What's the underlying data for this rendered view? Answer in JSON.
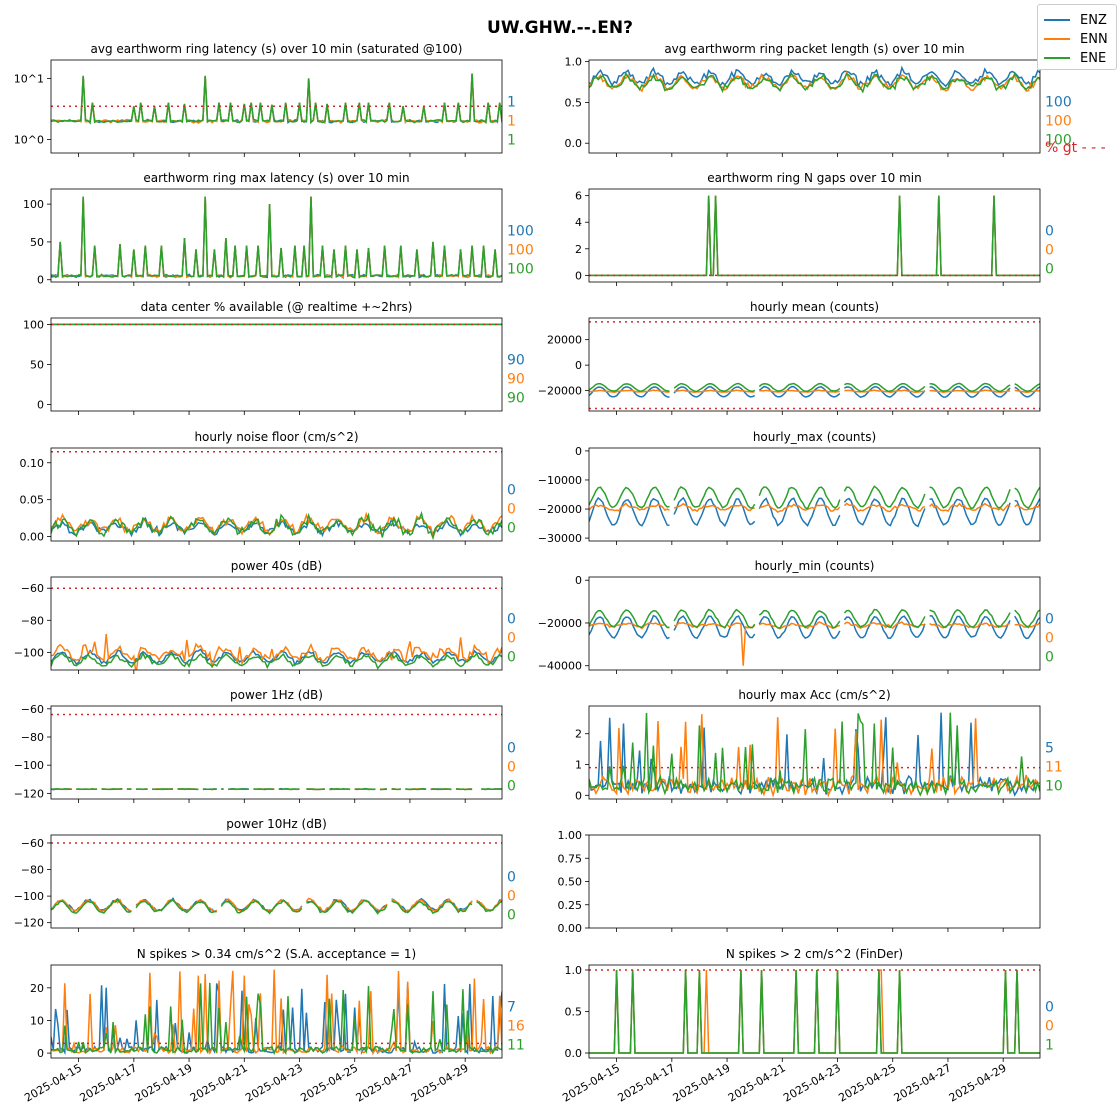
{
  "suptitle": "UW.GHW.--.EN?",
  "legend": [
    {
      "name": "ENZ",
      "color": "#1f77b4"
    },
    {
      "name": "ENN",
      "color": "#ff7f0e"
    },
    {
      "name": "ENE",
      "color": "#2ca02c"
    }
  ],
  "x_ticks": [
    "2025-04-15",
    "2025-04-17",
    "2025-04-19",
    "2025-04-21",
    "2025-04-23",
    "2025-04-25",
    "2025-04-27",
    "2025-04-29"
  ],
  "x_range": [
    "2025-04-14",
    "2025-04-30"
  ],
  "pct_gt_label": "% gt - - -",
  "threshold_color": "#d62728",
  "chart_data": [
    {
      "id": "latency_avg",
      "type": "line",
      "title": "avg earthworm ring latency (s)   over 10 min (saturated @100)",
      "yscale": "log",
      "ylim": [
        0.6,
        20
      ],
      "yticks": [
        {
          "v": 1,
          "label": "10^0"
        },
        {
          "v": 10,
          "label": "10^1"
        }
      ],
      "threshold": 3.5,
      "baseline": [
        2.0,
        2.0,
        2.0
      ],
      "noise": 0.12,
      "spikes": [
        {
          "x": 2025.0415,
          "h": 12
        },
        {
          "x": 0,
          "h": 0
        }
      ],
      "spike_list": [
        [
          "2025-04-15T03",
          11
        ],
        [
          "2025-04-15T12",
          4
        ],
        [
          "2025-04-17T00",
          3.5
        ],
        [
          "2025-04-17T06",
          4
        ],
        [
          "2025-04-17T18",
          3.5
        ],
        [
          "2025-04-18T06",
          4
        ],
        [
          "2025-04-18T20",
          3.8
        ],
        [
          "2025-04-19T14",
          11
        ],
        [
          "2025-04-20T02",
          4
        ],
        [
          "2025-04-20T12",
          4
        ],
        [
          "2025-04-21T00",
          3.8
        ],
        [
          "2025-04-21T06",
          4
        ],
        [
          "2025-04-21T14",
          4
        ],
        [
          "2025-04-22T00",
          3.7
        ],
        [
          "2025-04-22T12",
          4
        ],
        [
          "2025-04-23T00",
          4
        ],
        [
          "2025-04-23T08",
          10
        ],
        [
          "2025-04-23T14",
          4
        ],
        [
          "2025-04-24T00",
          3.8
        ],
        [
          "2025-04-24T16",
          4
        ],
        [
          "2025-04-25T04",
          4
        ],
        [
          "2025-04-25T12",
          4
        ],
        [
          "2025-04-26T06",
          4
        ],
        [
          "2025-04-26T18",
          3.5
        ],
        [
          "2025-04-27T12",
          3.5
        ],
        [
          "2025-04-28T06",
          4
        ],
        [
          "2025-04-28T18",
          4
        ],
        [
          "2025-04-29T06",
          12
        ],
        [
          "2025-04-29T20",
          4
        ],
        [
          "2025-04-30T06",
          4
        ]
      ],
      "right_labels": [
        "1",
        "1",
        "1"
      ]
    },
    {
      "id": "packet_len",
      "type": "line",
      "title": "avg earthworm ring packet length (s)   over 10 min",
      "ylim": [
        -0.12,
        1.02
      ],
      "yticks": [
        {
          "v": 0,
          "label": "0.0"
        },
        {
          "v": 0.5,
          "label": "0.5"
        },
        {
          "v": 1,
          "label": "1.0"
        }
      ],
      "threshold": null,
      "baseline": [
        0.8,
        0.74,
        0.74
      ],
      "diurnal": 0.07,
      "noise": 0.05,
      "right_labels": [
        "100",
        "100",
        "100"
      ],
      "pct_gt": true
    },
    {
      "id": "latency_max",
      "type": "line",
      "title": "earthworm ring max latency (s)   over 10 min",
      "ylim": [
        -3,
        120
      ],
      "yticks": [
        {
          "v": 0,
          "label": "0"
        },
        {
          "v": 50,
          "label": "50"
        },
        {
          "v": 100,
          "label": "100"
        }
      ],
      "threshold": null,
      "baseline": [
        5,
        5,
        5
      ],
      "noise": 2,
      "spike_list": [
        [
          "2025-04-14T08",
          50
        ],
        [
          "2025-04-15T03",
          110
        ],
        [
          "2025-04-15T14",
          45
        ],
        [
          "2025-04-16T12",
          47
        ],
        [
          "2025-04-17T00",
          40
        ],
        [
          "2025-04-17T10",
          45
        ],
        [
          "2025-04-18T00",
          45
        ],
        [
          "2025-04-18T20",
          55
        ],
        [
          "2025-04-19T06",
          40
        ],
        [
          "2025-04-19T14",
          110
        ],
        [
          "2025-04-19T22",
          40
        ],
        [
          "2025-04-20T08",
          55
        ],
        [
          "2025-04-20T16",
          45
        ],
        [
          "2025-04-21T02",
          45
        ],
        [
          "2025-04-21T12",
          45
        ],
        [
          "2025-04-21T22",
          100
        ],
        [
          "2025-04-22T08",
          42
        ],
        [
          "2025-04-22T20",
          45
        ],
        [
          "2025-04-23T04",
          45
        ],
        [
          "2025-04-23T10",
          110
        ],
        [
          "2025-04-23T20",
          45
        ],
        [
          "2025-04-24T06",
          40
        ],
        [
          "2025-04-24T16",
          45
        ],
        [
          "2025-04-25T02",
          40
        ],
        [
          "2025-04-25T12",
          42
        ],
        [
          "2025-04-26T02",
          45
        ],
        [
          "2025-04-26T16",
          45
        ],
        [
          "2025-04-27T06",
          40
        ],
        [
          "2025-04-27T20",
          50
        ],
        [
          "2025-04-28T06",
          45
        ],
        [
          "2025-04-28T20",
          40
        ],
        [
          "2025-04-29T06",
          45
        ],
        [
          "2025-04-29T16",
          45
        ],
        [
          "2025-04-30T02",
          40
        ]
      ],
      "right_labels": [
        "100",
        "100",
        "100"
      ]
    },
    {
      "id": "n_gaps",
      "type": "line",
      "title": "earthworm ring N gaps   over 10 min",
      "ylim": [
        -0.5,
        6.5
      ],
      "yticks": [
        {
          "v": 0,
          "label": "0"
        },
        {
          "v": 2,
          "label": "2"
        },
        {
          "v": 4,
          "label": "4"
        },
        {
          "v": 6,
          "label": "6"
        }
      ],
      "threshold": 0,
      "baseline": [
        0,
        0,
        0
      ],
      "noise": 0,
      "spike_list": [
        [
          "2025-04-18T07",
          6
        ],
        [
          "2025-04-18T14",
          6
        ],
        [
          "2025-04-25T06",
          6
        ],
        [
          "2025-04-26T15",
          6
        ],
        [
          "2025-04-28T16",
          6
        ]
      ],
      "right_labels": [
        "0",
        "0",
        "0"
      ]
    },
    {
      "id": "availability",
      "type": "line",
      "title": "data center % available (@ realtime +~2hrs)",
      "ylim": [
        -8,
        108
      ],
      "yticks": [
        {
          "v": 0,
          "label": "0"
        },
        {
          "v": 50,
          "label": "50"
        },
        {
          "v": 100,
          "label": "100"
        }
      ],
      "threshold": 100,
      "baseline": [
        100,
        100,
        100
      ],
      "noise": 0,
      "right_labels": [
        "90",
        "90",
        "90"
      ]
    },
    {
      "id": "hourly_mean",
      "type": "line",
      "title": "hourly mean (counts)",
      "ylim": [
        -36000,
        37000
      ],
      "yticks": [
        {
          "v": -20000,
          "label": "−20000"
        },
        {
          "v": 0,
          "label": "0"
        },
        {
          "v": 20000,
          "label": "20000"
        }
      ],
      "threshold": [
        34000,
        -34000
      ],
      "baseline": [
        -21000,
        -20500,
        -17500
      ],
      "diurnal": [
        4000,
        600,
        3000
      ],
      "noise": [
        300,
        300,
        300
      ],
      "gaps": true,
      "right_labels": [],
      "no_right": true
    },
    {
      "id": "noise_floor",
      "type": "line",
      "title": "hourly noise floor (cm/s^2)",
      "ylim": [
        -0.006,
        0.12
      ],
      "yticks": [
        {
          "v": 0,
          "label": "0.00"
        },
        {
          "v": 0.05,
          "label": "0.05"
        },
        {
          "v": 0.1,
          "label": "0.10"
        }
      ],
      "threshold": 0.115,
      "baseline": [
        0.012,
        0.016,
        0.014
      ],
      "diurnal": [
        0.006,
        0.008,
        0.008
      ],
      "noise": [
        0.006,
        0.008,
        0.008
      ],
      "right_labels": [
        "0",
        "0",
        "0"
      ]
    },
    {
      "id": "hourly_max",
      "type": "line",
      "title": "hourly_max (counts)",
      "ylim": [
        -31000,
        1000
      ],
      "yticks": [
        {
          "v": -30000,
          "label": "−30000"
        },
        {
          "v": -20000,
          "label": "−20000"
        },
        {
          "v": -10000,
          "label": "−10000"
        },
        {
          "v": 0,
          "label": "0"
        }
      ],
      "threshold": null,
      "baseline": [
        -21000,
        -19500,
        -16000
      ],
      "diurnal": [
        4500,
        800,
        3500
      ],
      "noise": [
        600,
        700,
        500
      ],
      "gaps": true,
      "no_right": true
    },
    {
      "id": "power_40s",
      "type": "line",
      "title": "power 40s (dB)",
      "ylim": [
        -111,
        -53
      ],
      "yticks": [
        {
          "v": -100,
          "label": "−100"
        },
        {
          "v": -80,
          "label": "−80"
        },
        {
          "v": -60,
          "label": "−60"
        }
      ],
      "threshold": -60,
      "baseline": [
        -103,
        -101,
        -105
      ],
      "diurnal": [
        3,
        3,
        3
      ],
      "noise": [
        2,
        4,
        2
      ],
      "spikes_series": 1,
      "right_labels": [
        "0",
        "0",
        "0"
      ]
    },
    {
      "id": "hourly_min",
      "type": "line",
      "title": "hourly_min (counts)",
      "ylim": [
        -42000,
        1500
      ],
      "yticks": [
        {
          "v": -40000,
          "label": "−40000"
        },
        {
          "v": -20000,
          "label": "−20000"
        },
        {
          "v": 0,
          "label": "0"
        }
      ],
      "threshold": null,
      "baseline": [
        -22000,
        -21000,
        -18000
      ],
      "diurnal": [
        5000,
        800,
        4000
      ],
      "noise": [
        700,
        800,
        600
      ],
      "gaps": true,
      "dip": [
        "2025-04-19T14",
        -40000
      ],
      "right_labels": [
        "0",
        "0",
        "0"
      ]
    },
    {
      "id": "power_1hz",
      "type": "line",
      "title": "power 1Hz (dB)",
      "ylim": [
        -124,
        -58
      ],
      "yticks": [
        {
          "v": -120,
          "label": "−120"
        },
        {
          "v": -100,
          "label": "−100"
        },
        {
          "v": -80,
          "label": "−80"
        },
        {
          "v": -60,
          "label": "−60"
        }
      ],
      "threshold": -64,
      "baseline": [
        -117,
        -117,
        -117
      ],
      "noise": [
        0.3,
        0.3,
        0.3
      ],
      "gaps": true,
      "right_labels": [
        "0",
        "0",
        "0"
      ]
    },
    {
      "id": "max_acc",
      "type": "line",
      "title": "hourly max Acc (cm/s^2)",
      "ylim": [
        -0.12,
        2.9
      ],
      "yticks": [
        {
          "v": 0,
          "label": "0"
        },
        {
          "v": 1,
          "label": "1"
        },
        {
          "v": 2,
          "label": "2"
        }
      ],
      "threshold": 0.9,
      "baseline": [
        0.3,
        0.35,
        0.3
      ],
      "noise": [
        0.2,
        0.25,
        0.2
      ],
      "right_labels": [
        "5",
        "11",
        "10"
      ],
      "acc": true
    },
    {
      "id": "power_10hz",
      "type": "line",
      "title": "power 10Hz (dB)",
      "ylim": [
        -124,
        -54
      ],
      "yticks": [
        {
          "v": -120,
          "label": "−120"
        },
        {
          "v": -100,
          "label": "−100"
        },
        {
          "v": -80,
          "label": "−80"
        },
        {
          "v": -60,
          "label": "−60"
        }
      ],
      "threshold": -60,
      "baseline": [
        -107,
        -107,
        -108
      ],
      "diurnal": [
        4,
        4,
        4
      ],
      "noise": [
        1.5,
        1.5,
        1.5
      ],
      "gaps": true,
      "right_labels": [
        "0",
        "0",
        "0"
      ]
    },
    {
      "id": "empty",
      "type": "line",
      "title": "",
      "ylim": [
        0,
        1
      ],
      "yticks": [
        {
          "v": 0,
          "label": "0.00"
        },
        {
          "v": 0.25,
          "label": "0.25"
        },
        {
          "v": 0.5,
          "label": "0.50"
        },
        {
          "v": 0.75,
          "label": "0.75"
        },
        {
          "v": 1,
          "label": "1.00"
        }
      ],
      "empty": true,
      "right_labels": [],
      "no_right": true
    },
    {
      "id": "spikes_034",
      "type": "line",
      "title": "N spikes > 0.34 cm/s^2 (S.A. acceptance = 1)",
      "ylim": [
        -1.5,
        27
      ],
      "yticks": [
        {
          "v": 0,
          "label": "0"
        },
        {
          "v": 10,
          "label": "10"
        },
        {
          "v": 20,
          "label": "20"
        }
      ],
      "threshold": 3,
      "baseline": [
        0,
        0,
        0
      ],
      "noise": 0,
      "count_spikes": true,
      "right_labels": [
        "7",
        "16",
        "11"
      ]
    },
    {
      "id": "spikes_2",
      "type": "line",
      "title": "N spikes > 2 cm/s^2 (FinDer)",
      "ylim": [
        -0.06,
        1.06
      ],
      "yticks": [
        {
          "v": 0,
          "label": "0.0"
        },
        {
          "v": 0.5,
          "label": "0.5"
        },
        {
          "v": 1,
          "label": "1.0"
        }
      ],
      "threshold": 1,
      "baseline": [
        0,
        0,
        0
      ],
      "noise": 0,
      "spike_list": [
        [
          "2025-04-15T00",
          1
        ],
        [
          "2025-04-15T14",
          1
        ],
        [
          "2025-04-17T12",
          1
        ],
        [
          "2025-04-18T00",
          1
        ],
        [
          "2025-04-19T12",
          1
        ],
        [
          "2025-04-20T06",
          1
        ],
        [
          "2025-04-21T12",
          1
        ],
        [
          "2025-04-22T06",
          1
        ],
        [
          "2025-04-23T00",
          1
        ],
        [
          "2025-04-24T12",
          1
        ],
        [
          "2025-04-25T06",
          1
        ],
        [
          "2025-04-29T02",
          1
        ],
        [
          "2025-04-29T12",
          1
        ]
      ],
      "orange_spikes": [
        [
          "2025-04-18T06",
          1
        ],
        [
          "2025-04-24T14",
          1
        ]
      ],
      "right_labels": [
        "0",
        "0",
        "1"
      ]
    }
  ]
}
